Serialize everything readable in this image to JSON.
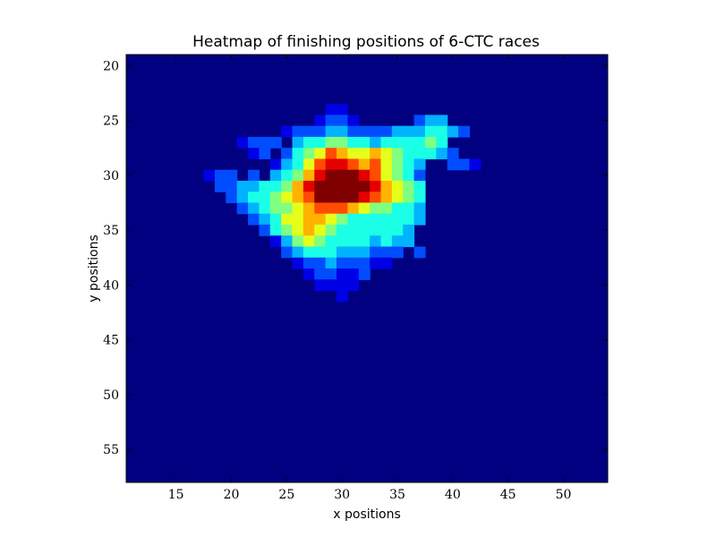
{
  "chart_data": {
    "type": "heatmap",
    "title": "Heatmap of finishing positions of 6-CTC races",
    "xlabel": "x positions",
    "ylabel": "y positions",
    "xlim": [
      10.5,
      54
    ],
    "ylim": [
      58,
      19
    ],
    "y_inverted": true,
    "x_ticks": [
      15,
      20,
      25,
      30,
      35,
      40,
      45,
      50
    ],
    "y_ticks": [
      20,
      25,
      30,
      35,
      40,
      45,
      50,
      55
    ],
    "colormap": "jet",
    "background_value": 0,
    "value_range": [
      0,
      10
    ],
    "grid": false,
    "cells": [
      [
        29,
        24,
        1
      ],
      [
        30,
        24,
        1
      ],
      [
        28,
        25,
        1
      ],
      [
        29,
        25,
        2
      ],
      [
        30,
        25,
        2
      ],
      [
        31,
        25,
        1
      ],
      [
        37,
        25,
        2
      ],
      [
        38,
        25,
        3
      ],
      [
        39,
        25,
        3
      ],
      [
        25,
        26,
        1
      ],
      [
        26,
        26,
        2
      ],
      [
        27,
        26,
        2
      ],
      [
        28,
        26,
        2
      ],
      [
        29,
        26,
        3
      ],
      [
        30,
        26,
        3
      ],
      [
        31,
        26,
        2
      ],
      [
        32,
        26,
        2
      ],
      [
        33,
        26,
        2
      ],
      [
        34,
        26,
        2
      ],
      [
        35,
        26,
        3
      ],
      [
        36,
        26,
        3
      ],
      [
        37,
        26,
        3
      ],
      [
        38,
        26,
        4
      ],
      [
        39,
        26,
        4
      ],
      [
        40,
        26,
        3
      ],
      [
        41,
        26,
        2
      ],
      [
        21,
        27,
        1
      ],
      [
        22,
        27,
        2
      ],
      [
        23,
        27,
        2
      ],
      [
        24,
        27,
        2
      ],
      [
        26,
        27,
        3
      ],
      [
        27,
        27,
        4
      ],
      [
        28,
        27,
        4
      ],
      [
        29,
        27,
        5
      ],
      [
        30,
        27,
        5
      ],
      [
        31,
        27,
        4
      ],
      [
        32,
        27,
        4
      ],
      [
        33,
        27,
        3
      ],
      [
        34,
        27,
        4
      ],
      [
        35,
        27,
        4
      ],
      [
        36,
        27,
        4
      ],
      [
        37,
        27,
        4
      ],
      [
        38,
        27,
        5
      ],
      [
        39,
        27,
        4
      ],
      [
        22,
        28,
        1
      ],
      [
        23,
        28,
        2
      ],
      [
        25,
        28,
        2
      ],
      [
        26,
        28,
        4
      ],
      [
        27,
        28,
        5
      ],
      [
        28,
        28,
        6
      ],
      [
        29,
        28,
        8
      ],
      [
        30,
        28,
        7
      ],
      [
        31,
        28,
        6
      ],
      [
        32,
        28,
        6
      ],
      [
        33,
        28,
        7
      ],
      [
        34,
        28,
        6
      ],
      [
        35,
        28,
        5
      ],
      [
        36,
        28,
        4
      ],
      [
        37,
        28,
        4
      ],
      [
        38,
        28,
        4
      ],
      [
        39,
        28,
        3
      ],
      [
        40,
        28,
        2
      ],
      [
        24,
        29,
        1
      ],
      [
        25,
        29,
        3
      ],
      [
        26,
        29,
        4
      ],
      [
        27,
        29,
        6
      ],
      [
        28,
        29,
        8
      ],
      [
        29,
        29,
        9
      ],
      [
        30,
        29,
        9
      ],
      [
        31,
        29,
        8
      ],
      [
        32,
        29,
        7
      ],
      [
        33,
        29,
        8
      ],
      [
        34,
        29,
        6
      ],
      [
        35,
        29,
        5
      ],
      [
        36,
        29,
        4
      ],
      [
        37,
        29,
        3
      ],
      [
        40,
        29,
        2
      ],
      [
        41,
        29,
        2
      ],
      [
        42,
        29,
        1
      ],
      [
        18,
        30,
        1
      ],
      [
        19,
        30,
        2
      ],
      [
        20,
        30,
        2
      ],
      [
        22,
        30,
        2
      ],
      [
        24,
        30,
        3
      ],
      [
        25,
        30,
        4
      ],
      [
        26,
        30,
        5
      ],
      [
        27,
        30,
        7
      ],
      [
        28,
        30,
        9
      ],
      [
        29,
        30,
        10
      ],
      [
        30,
        30,
        10
      ],
      [
        31,
        30,
        10
      ],
      [
        32,
        30,
        9
      ],
      [
        33,
        30,
        8
      ],
      [
        34,
        30,
        6
      ],
      [
        35,
        30,
        5
      ],
      [
        36,
        30,
        4
      ],
      [
        37,
        30,
        2
      ],
      [
        19,
        31,
        2
      ],
      [
        20,
        31,
        2
      ],
      [
        21,
        31,
        3
      ],
      [
        22,
        31,
        3
      ],
      [
        23,
        31,
        4
      ],
      [
        24,
        31,
        4
      ],
      [
        25,
        31,
        5
      ],
      [
        26,
        31,
        7
      ],
      [
        27,
        31,
        9
      ],
      [
        28,
        31,
        10
      ],
      [
        29,
        31,
        10
      ],
      [
        30,
        31,
        10
      ],
      [
        31,
        31,
        10
      ],
      [
        32,
        31,
        10
      ],
      [
        33,
        31,
        9
      ],
      [
        34,
        31,
        7
      ],
      [
        35,
        31,
        6
      ],
      [
        36,
        31,
        5
      ],
      [
        37,
        31,
        4
      ],
      [
        20,
        32,
        2
      ],
      [
        21,
        32,
        3
      ],
      [
        22,
        32,
        4
      ],
      [
        23,
        32,
        4
      ],
      [
        24,
        32,
        5
      ],
      [
        25,
        32,
        6
      ],
      [
        26,
        32,
        7
      ],
      [
        27,
        32,
        8
      ],
      [
        28,
        32,
        10
      ],
      [
        29,
        32,
        10
      ],
      [
        30,
        32,
        10
      ],
      [
        31,
        32,
        10
      ],
      [
        32,
        32,
        9
      ],
      [
        33,
        32,
        8
      ],
      [
        34,
        32,
        7
      ],
      [
        35,
        32,
        6
      ],
      [
        36,
        32,
        5
      ],
      [
        37,
        32,
        4
      ],
      [
        21,
        33,
        2
      ],
      [
        22,
        33,
        3
      ],
      [
        23,
        33,
        4
      ],
      [
        24,
        33,
        5
      ],
      [
        25,
        33,
        5
      ],
      [
        26,
        33,
        6
      ],
      [
        27,
        33,
        7
      ],
      [
        28,
        33,
        8
      ],
      [
        29,
        33,
        8
      ],
      [
        30,
        33,
        8
      ],
      [
        31,
        33,
        7
      ],
      [
        32,
        33,
        6
      ],
      [
        33,
        33,
        5
      ],
      [
        34,
        33,
        5
      ],
      [
        35,
        33,
        4
      ],
      [
        36,
        33,
        4
      ],
      [
        37,
        33,
        3
      ],
      [
        22,
        34,
        2
      ],
      [
        23,
        34,
        3
      ],
      [
        24,
        34,
        4
      ],
      [
        25,
        34,
        6
      ],
      [
        26,
        34,
        6
      ],
      [
        27,
        34,
        7
      ],
      [
        28,
        34,
        7
      ],
      [
        29,
        34,
        6
      ],
      [
        30,
        34,
        5
      ],
      [
        31,
        34,
        4
      ],
      [
        32,
        34,
        4
      ],
      [
        33,
        34,
        4
      ],
      [
        34,
        34,
        4
      ],
      [
        35,
        34,
        4
      ],
      [
        36,
        34,
        4
      ],
      [
        37,
        34,
        3
      ],
      [
        23,
        35,
        2
      ],
      [
        24,
        35,
        4
      ],
      [
        25,
        35,
        5
      ],
      [
        26,
        35,
        6
      ],
      [
        27,
        35,
        7
      ],
      [
        28,
        35,
        6
      ],
      [
        29,
        35,
        5
      ],
      [
        30,
        35,
        4
      ],
      [
        31,
        35,
        4
      ],
      [
        32,
        35,
        4
      ],
      [
        33,
        35,
        4
      ],
      [
        34,
        35,
        4
      ],
      [
        35,
        35,
        4
      ],
      [
        36,
        35,
        3
      ],
      [
        24,
        36,
        1
      ],
      [
        25,
        36,
        3
      ],
      [
        26,
        36,
        5
      ],
      [
        27,
        36,
        6
      ],
      [
        28,
        36,
        5
      ],
      [
        29,
        36,
        4
      ],
      [
        30,
        36,
        4
      ],
      [
        31,
        36,
        4
      ],
      [
        32,
        36,
        4
      ],
      [
        33,
        36,
        3
      ],
      [
        34,
        36,
        4
      ],
      [
        35,
        36,
        3
      ],
      [
        36,
        36,
        3
      ],
      [
        25,
        37,
        2
      ],
      [
        26,
        37,
        3
      ],
      [
        27,
        37,
        4
      ],
      [
        28,
        37,
        4
      ],
      [
        29,
        37,
        4
      ],
      [
        30,
        37,
        3
      ],
      [
        31,
        37,
        3
      ],
      [
        32,
        37,
        3
      ],
      [
        33,
        37,
        2
      ],
      [
        34,
        37,
        2
      ],
      [
        35,
        37,
        2
      ],
      [
        37,
        37,
        2
      ],
      [
        26,
        38,
        1
      ],
      [
        27,
        38,
        2
      ],
      [
        28,
        38,
        2
      ],
      [
        29,
        38,
        3
      ],
      [
        30,
        38,
        2
      ],
      [
        31,
        38,
        2
      ],
      [
        32,
        38,
        2
      ],
      [
        33,
        38,
        1
      ],
      [
        34,
        38,
        1
      ],
      [
        27,
        39,
        1
      ],
      [
        28,
        39,
        2
      ],
      [
        29,
        39,
        2
      ],
      [
        30,
        39,
        1
      ],
      [
        31,
        39,
        1
      ],
      [
        32,
        39,
        2
      ],
      [
        28,
        40,
        1
      ],
      [
        29,
        40,
        1
      ],
      [
        30,
        40,
        1
      ],
      [
        31,
        40,
        1
      ],
      [
        30,
        41,
        1
      ]
    ]
  }
}
